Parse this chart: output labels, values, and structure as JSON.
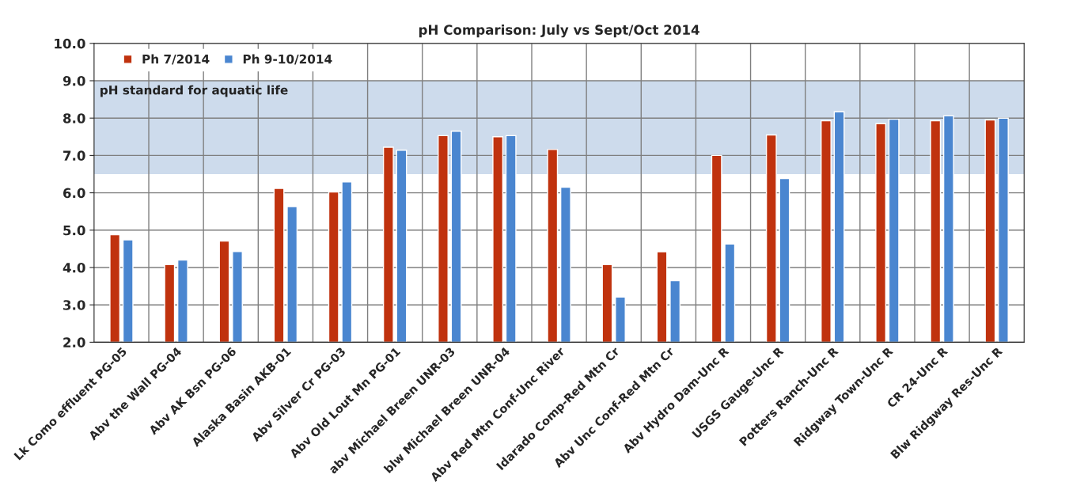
{
  "chart_data": {
    "type": "bar",
    "title": "pH Comparison: July vs Sept/Oct 2014",
    "categories": [
      "Lk Como effluent PG-05",
      "Abv the Wall PG-04",
      "Abv AK Bsn PG-06",
      "Alaska Basin AKB-01",
      "Abv Silver Cr PG-03",
      "Abv Old Lout Mn PG-01",
      "abv Michael Breen UNR-03",
      "blw Michael Breen UNR-04",
      "Abv Red Mtn Conf-Unc River",
      "Idarado Comp-Red Mtn Cr",
      "Abv Unc Conf-Red Mtn Cr",
      "Abv Hydro Dam-Unc R",
      "USGS Gauge-Unc R",
      "Potters Ranch-Unc R",
      "Ridgway Town-Unc R",
      "CR 24-Unc R",
      "Blw Ridgway Res-Unc R"
    ],
    "series": [
      {
        "name": "Ph 7/2014",
        "color": "#c0320e",
        "values": [
          4.88,
          4.08,
          4.71,
          6.12,
          6.02,
          7.22,
          7.53,
          7.5,
          7.16,
          4.08,
          4.42,
          7.0,
          7.55,
          7.93,
          7.85,
          7.93,
          7.95
        ]
      },
      {
        "name": "Ph 9-10/2014",
        "color": "#4a86d0",
        "values": [
          4.74,
          4.2,
          4.43,
          5.63,
          6.29,
          7.14,
          7.65,
          7.53,
          6.15,
          3.21,
          3.65,
          4.63,
          6.38,
          8.17,
          7.97,
          8.06,
          8.0
        ]
      }
    ],
    "ylim": [
      2.0,
      10.0
    ],
    "yticks": [
      {
        "value": 2,
        "label": "2.0"
      },
      {
        "value": 3,
        "label": "3.0"
      },
      {
        "value": 4,
        "label": "4.0"
      },
      {
        "value": 5,
        "label": "5.0"
      },
      {
        "value": 6,
        "label": "6.0"
      },
      {
        "value": 7,
        "label": "7.0"
      },
      {
        "value": 8,
        "label": "8.0"
      },
      {
        "value": 9,
        "label": "9.0"
      },
      {
        "value": 10,
        "label": "10.0"
      }
    ],
    "bands": [
      {
        "axis": "y",
        "from": 6.5,
        "to": 9.0,
        "label": "pH standard for aquatic life",
        "color": "#b8cce4"
      }
    ],
    "grid": true,
    "legend": "top left"
  }
}
